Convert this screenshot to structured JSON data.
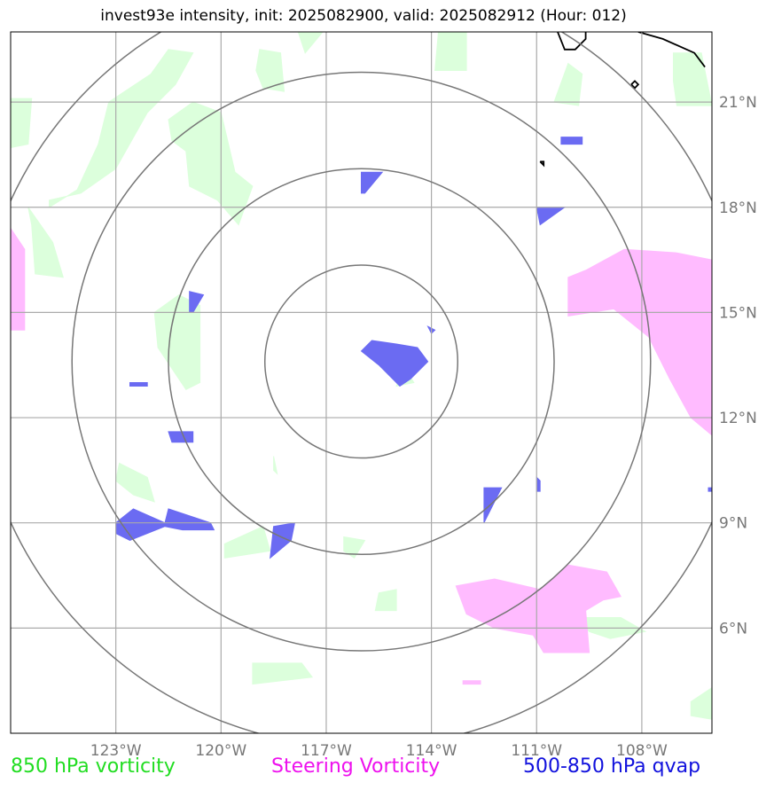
{
  "chart_data": {
    "type": "map",
    "title": "invest93e intensity, init: 2025082900, valid: 2025082912 (Hour: 012)",
    "storm": "invest93e",
    "init": "2025082900",
    "valid": "2025082912",
    "forecast_hour": "012",
    "lon_range": [
      -126.0,
      -106.0
    ],
    "lat_range": [
      3.0,
      23.0
    ],
    "lon_ticks": [
      -123,
      -120,
      -117,
      -114,
      -111,
      -108
    ],
    "lat_ticks": [
      21,
      18,
      15,
      12,
      9,
      6
    ],
    "lon_tick_labels": [
      "123°W",
      "120°W",
      "117°W",
      "114°W",
      "111°W",
      "108°W"
    ],
    "lat_tick_labels": [
      "21°N",
      "18°N",
      "15°N",
      "12°N",
      "9°N",
      "6°N"
    ],
    "storm_center": {
      "lon": -116.0,
      "lat": 13.6
    },
    "range_rings_deg": [
      2.75,
      5.5,
      8.25,
      11.0
    ],
    "grid": true,
    "legend": [
      {
        "label": "850 hPa vorticity",
        "color": "#22dd22"
      },
      {
        "label": "Steering Vorticity",
        "color": "#ee11ee"
      },
      {
        "label": "500-850 hPa qvap",
        "color": "#1111dd"
      }
    ],
    "fields": [
      {
        "name": "850 hPa vorticity",
        "fill": "#dcffdc",
        "regions": [
          [
            [
              -118.9,
              22.5
            ],
            [
              -118.3,
              22.4
            ],
            [
              -118.2,
              21.3
            ],
            [
              -118.8,
              21.4
            ],
            [
              -119.0,
              21.9
            ]
          ],
          [
            [
              -113.8,
              23.0
            ],
            [
              -113.0,
              23.0
            ],
            [
              -113.0,
              21.9
            ],
            [
              -113.9,
              21.9
            ]
          ],
          [
            [
              -110.5,
              21.0
            ],
            [
              -110.1,
              22.1
            ],
            [
              -109.7,
              21.8
            ],
            [
              -109.8,
              20.9
            ]
          ],
          [
            [
              -107.1,
              22.4
            ],
            [
              -106.3,
              22.4
            ],
            [
              -106.0,
              20.9
            ],
            [
              -107.0,
              20.9
            ],
            [
              -107.1,
              21.6
            ]
          ],
          [
            [
              -117.8,
              23.0
            ],
            [
              -117.1,
              23.0
            ],
            [
              -117.6,
              22.4
            ]
          ],
          [
            [
              -126.0,
              21.1
            ],
            [
              -125.4,
              21.1
            ],
            [
              -125.5,
              19.8
            ],
            [
              -126.0,
              19.7
            ]
          ],
          [
            [
              -124.9,
              18.0
            ],
            [
              -124.1,
              18.5
            ],
            [
              -123.5,
              19.8
            ],
            [
              -123.2,
              21.0
            ],
            [
              -122.0,
              21.8
            ],
            [
              -121.5,
              22.5
            ],
            [
              -120.8,
              22.4
            ],
            [
              -121.3,
              21.5
            ],
            [
              -122.1,
              20.7
            ],
            [
              -123.0,
              19.1
            ],
            [
              -124.0,
              18.4
            ],
            [
              -124.9,
              18.2
            ]
          ],
          [
            [
              -121.5,
              20.5
            ],
            [
              -120.8,
              21.0
            ],
            [
              -120.0,
              20.7
            ],
            [
              -119.6,
              19.0
            ],
            [
              -119.1,
              18.6
            ],
            [
              -119.5,
              17.5
            ],
            [
              -120.1,
              18.2
            ],
            [
              -120.9,
              18.6
            ],
            [
              -121.0,
              19.6
            ],
            [
              -121.4,
              19.9
            ]
          ],
          [
            [
              -125.5,
              18.0
            ],
            [
              -124.8,
              17.0
            ],
            [
              -124.5,
              16.0
            ],
            [
              -125.3,
              16.1
            ],
            [
              -125.4,
              17.5
            ]
          ],
          [
            [
              -121.9,
              15.0
            ],
            [
              -121.2,
              15.5
            ],
            [
              -120.6,
              15.2
            ],
            [
              -120.6,
              13.0
            ],
            [
              -121.0,
              12.8
            ],
            [
              -121.8,
              14.0
            ]
          ],
          [
            [
              -115.0,
              12.9
            ],
            [
              -114.5,
              13.0
            ],
            [
              -114.8,
              13.5
            ]
          ],
          [
            [
              -118.5,
              10.9
            ],
            [
              -118.4,
              10.4
            ],
            [
              -118.5,
              10.5
            ]
          ],
          [
            [
              -122.9,
              10.7
            ],
            [
              -122.1,
              10.3
            ],
            [
              -121.9,
              9.6
            ],
            [
              -122.5,
              9.8
            ],
            [
              -123.0,
              10.2
            ]
          ],
          [
            [
              -119.9,
              8.4
            ],
            [
              -118.8,
              8.9
            ],
            [
              -118.6,
              8.2
            ],
            [
              -119.9,
              8.0
            ]
          ],
          [
            [
              -116.5,
              8.6
            ],
            [
              -115.9,
              8.5
            ],
            [
              -116.2,
              8.0
            ],
            [
              -116.5,
              8.2
            ]
          ],
          [
            [
              -115.5,
              7.0
            ],
            [
              -115.0,
              7.1
            ],
            [
              -115.0,
              6.5
            ],
            [
              -115.6,
              6.5
            ]
          ],
          [
            [
              -109.9,
              6.3
            ],
            [
              -108.6,
              6.3
            ],
            [
              -107.9,
              5.9
            ],
            [
              -108.9,
              5.7
            ],
            [
              -109.5,
              5.9
            ]
          ],
          [
            [
              -119.1,
              5.0
            ],
            [
              -117.7,
              5.0
            ],
            [
              -117.4,
              4.6
            ],
            [
              -119.1,
              4.4
            ]
          ],
          [
            [
              -106.6,
              3.9
            ],
            [
              -106.0,
              4.3
            ],
            [
              -106.0,
              3.4
            ],
            [
              -106.6,
              3.5
            ]
          ]
        ]
      },
      {
        "name": "Steering Vorticity",
        "fill": "#ffbbff",
        "regions": [
          [
            [
              -108.5,
              16.8
            ],
            [
              -107.0,
              16.7
            ],
            [
              -106.0,
              16.5
            ],
            [
              -106.0,
              11.5
            ],
            [
              -106.6,
              12.0
            ],
            [
              -107.2,
              13.1
            ],
            [
              -107.8,
              14.3
            ],
            [
              -108.8,
              15.1
            ],
            [
              -110.1,
              14.9
            ],
            [
              -110.1,
              16.0
            ],
            [
              -109.6,
              16.2
            ]
          ],
          [
            [
              -126.0,
              17.4
            ],
            [
              -125.6,
              16.8
            ],
            [
              -125.6,
              14.5
            ],
            [
              -126.0,
              14.5
            ]
          ],
          [
            [
              -113.3,
              7.2
            ],
            [
              -112.2,
              7.4
            ],
            [
              -110.9,
              7.1
            ],
            [
              -110.1,
              7.8
            ],
            [
              -109.0,
              7.6
            ],
            [
              -108.6,
              6.9
            ],
            [
              -109.1,
              6.8
            ],
            [
              -109.6,
              6.5
            ],
            [
              -109.5,
              5.3
            ],
            [
              -110.8,
              5.3
            ],
            [
              -111.1,
              5.8
            ],
            [
              -112.2,
              6.0
            ],
            [
              -113.0,
              6.4
            ]
          ],
          [
            [
              -113.1,
              4.5
            ],
            [
              -112.6,
              4.5
            ],
            [
              -112.6,
              4.4
            ],
            [
              -113.1,
              4.4
            ]
          ]
        ]
      },
      {
        "name": "500-850 hPa qvap",
        "fill": "#6b6bf2",
        "regions": [
          [
            [
              -115.7,
              14.2
            ],
            [
              -115.0,
              14.1
            ],
            [
              -114.4,
              14.0
            ],
            [
              -114.1,
              13.6
            ],
            [
              -114.6,
              13.1
            ],
            [
              -114.9,
              12.9
            ],
            [
              -115.5,
              13.5
            ],
            [
              -116.0,
              13.9
            ]
          ],
          [
            [
              -116.0,
              19.0
            ],
            [
              -115.4,
              19.0
            ],
            [
              -115.9,
              18.4
            ],
            [
              -116.0,
              18.4
            ]
          ],
          [
            [
              -111.0,
              18.0
            ],
            [
              -110.2,
              18.0
            ],
            [
              -110.9,
              17.5
            ]
          ],
          [
            [
              -110.3,
              20.0
            ],
            [
              -109.7,
              20.0
            ],
            [
              -109.7,
              19.8
            ],
            [
              -110.3,
              19.8
            ]
          ],
          [
            [
              -120.9,
              15.6
            ],
            [
              -120.5,
              15.5
            ],
            [
              -120.8,
              15.0
            ],
            [
              -120.9,
              15.0
            ]
          ],
          [
            [
              -122.6,
              13.0
            ],
            [
              -122.1,
              13.0
            ],
            [
              -122.1,
              12.9
            ],
            [
              -122.6,
              12.9
            ]
          ],
          [
            [
              -121.5,
              11.6
            ],
            [
              -120.8,
              11.6
            ],
            [
              -120.8,
              11.3
            ],
            [
              -121.4,
              11.3
            ]
          ],
          [
            [
              -123.0,
              9.0
            ],
            [
              -122.5,
              9.4
            ],
            [
              -121.6,
              9.0
            ],
            [
              -121.5,
              9.4
            ],
            [
              -120.3,
              9.0
            ],
            [
              -120.2,
              8.8
            ],
            [
              -121.1,
              8.8
            ],
            [
              -121.6,
              8.9
            ],
            [
              -122.6,
              8.5
            ],
            [
              -123.0,
              8.7
            ]
          ],
          [
            [
              -118.5,
              8.9
            ],
            [
              -117.9,
              9.0
            ],
            [
              -118.0,
              8.5
            ],
            [
              -118.6,
              8.0
            ]
          ],
          [
            [
              -112.5,
              10.0
            ],
            [
              -112.0,
              10.0
            ],
            [
              -112.5,
              9.0
            ]
          ],
          [
            [
              -111.0,
              10.3
            ],
            [
              -110.9,
              10.2
            ],
            [
              -110.9,
              9.9
            ],
            [
              -111.0,
              9.9
            ]
          ],
          [
            [
              -114.1,
              14.6
            ],
            [
              -113.9,
              14.5
            ],
            [
              -114.0,
              14.4
            ]
          ],
          [
            [
              -106.1,
              10.0
            ],
            [
              -106.0,
              10.0
            ],
            [
              -106.0,
              9.9
            ],
            [
              -106.1,
              9.9
            ]
          ]
        ]
      }
    ],
    "coastlines": [
      [
        [
          -110.4,
          23.0
        ],
        [
          -110.2,
          22.5
        ],
        [
          -109.9,
          22.5
        ],
        [
          -109.6,
          22.8
        ],
        [
          -109.6,
          23.0
        ]
      ],
      [
        [
          -108.1,
          23.0
        ],
        [
          -107.4,
          22.8
        ],
        [
          -106.5,
          22.4
        ],
        [
          -106.2,
          22.0
        ]
      ],
      [
        [
          -108.3,
          21.5
        ],
        [
          -108.2,
          21.4
        ],
        [
          -108.1,
          21.5
        ],
        [
          -108.2,
          21.6
        ],
        [
          -108.3,
          21.5
        ]
      ],
      [
        [
          -110.9,
          19.3
        ],
        [
          -110.8,
          19.2
        ],
        [
          -110.8,
          19.3
        ],
        [
          -110.9,
          19.3
        ]
      ]
    ]
  }
}
